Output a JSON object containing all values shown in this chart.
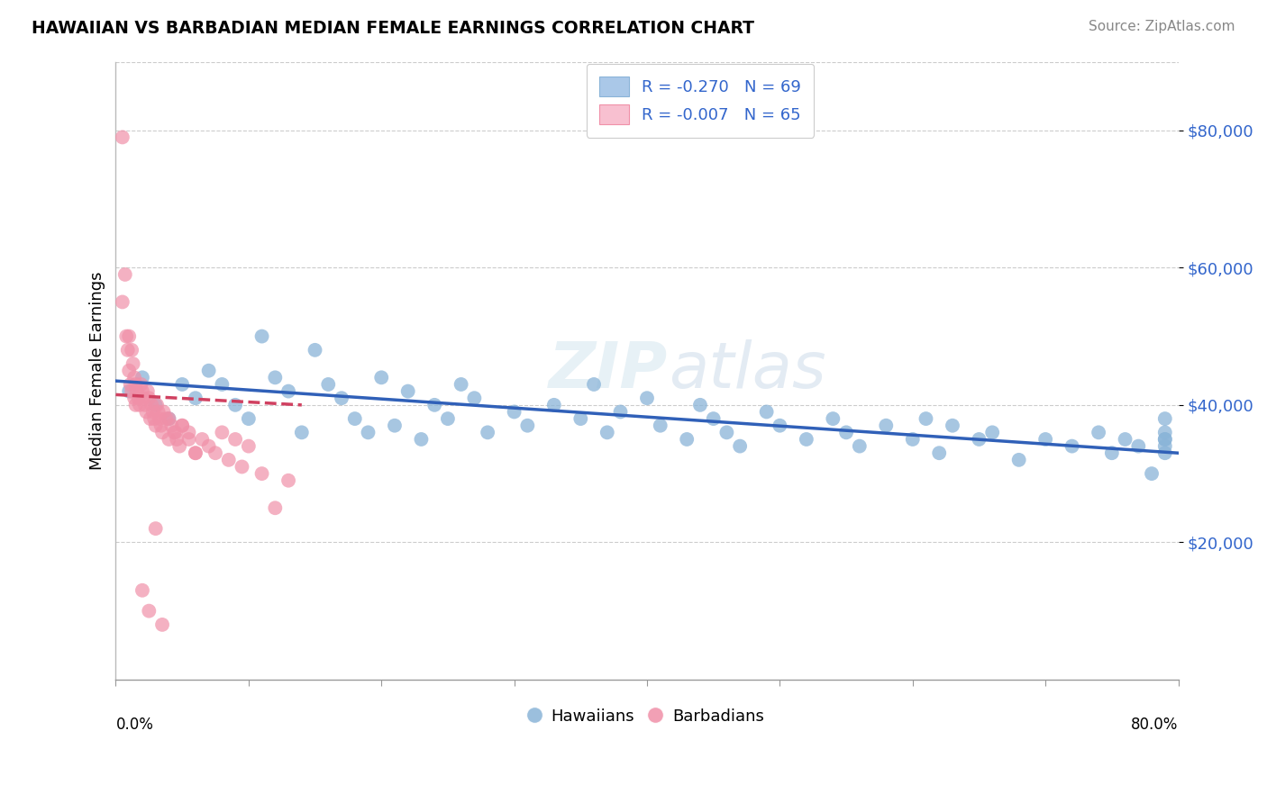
{
  "title": "HAWAIIAN VS BARBADIAN MEDIAN FEMALE EARNINGS CORRELATION CHART",
  "source": "Source: ZipAtlas.com",
  "ylabel": "Median Female Earnings",
  "watermark": "ZIPatlas",
  "dot_color_hawaiians": "#8ab4d8",
  "dot_color_barbadians": "#f090a8",
  "line_color_hawaiians": "#3060b8",
  "line_color_barbadians": "#d04060",
  "background_color": "#ffffff",
  "grid_color": "#cccccc",
  "xlim": [
    0,
    0.8
  ],
  "ylim": [
    0,
    90000
  ],
  "yticks": [
    20000,
    40000,
    60000,
    80000
  ],
  "ytick_labels": [
    "$20,000",
    "$40,000",
    "$60,000",
    "$80,000"
  ],
  "hawaiians_x": [
    0.01,
    0.02,
    0.03,
    0.04,
    0.05,
    0.06,
    0.07,
    0.08,
    0.09,
    0.1,
    0.11,
    0.12,
    0.13,
    0.14,
    0.15,
    0.16,
    0.17,
    0.18,
    0.19,
    0.2,
    0.21,
    0.22,
    0.23,
    0.24,
    0.25,
    0.26,
    0.27,
    0.28,
    0.3,
    0.31,
    0.33,
    0.35,
    0.36,
    0.37,
    0.38,
    0.4,
    0.41,
    0.43,
    0.44,
    0.45,
    0.46,
    0.47,
    0.49,
    0.5,
    0.52,
    0.54,
    0.55,
    0.56,
    0.58,
    0.6,
    0.61,
    0.62,
    0.63,
    0.65,
    0.66,
    0.68,
    0.7,
    0.72,
    0.74,
    0.75,
    0.76,
    0.77,
    0.78,
    0.79,
    0.79,
    0.79,
    0.79,
    0.79,
    0.79
  ],
  "hawaiians_y": [
    42000,
    44000,
    40000,
    38000,
    43000,
    41000,
    45000,
    43000,
    40000,
    38000,
    50000,
    44000,
    42000,
    36000,
    48000,
    43000,
    41000,
    38000,
    36000,
    44000,
    37000,
    42000,
    35000,
    40000,
    38000,
    43000,
    41000,
    36000,
    39000,
    37000,
    40000,
    38000,
    43000,
    36000,
    39000,
    41000,
    37000,
    35000,
    40000,
    38000,
    36000,
    34000,
    39000,
    37000,
    35000,
    38000,
    36000,
    34000,
    37000,
    35000,
    38000,
    33000,
    37000,
    35000,
    36000,
    32000,
    35000,
    34000,
    36000,
    33000,
    35000,
    34000,
    30000,
    38000,
    36000,
    35000,
    34000,
    33000,
    35000
  ],
  "barbadians_x": [
    0.005,
    0.005,
    0.007,
    0.008,
    0.009,
    0.01,
    0.01,
    0.011,
    0.012,
    0.012,
    0.013,
    0.014,
    0.014,
    0.015,
    0.015,
    0.016,
    0.017,
    0.018,
    0.019,
    0.02,
    0.021,
    0.022,
    0.023,
    0.024,
    0.025,
    0.026,
    0.027,
    0.028,
    0.029,
    0.03,
    0.031,
    0.032,
    0.033,
    0.034,
    0.035,
    0.036,
    0.038,
    0.04,
    0.042,
    0.044,
    0.046,
    0.048,
    0.05,
    0.055,
    0.06,
    0.065,
    0.07,
    0.075,
    0.08,
    0.085,
    0.09,
    0.095,
    0.1,
    0.11,
    0.12,
    0.13,
    0.02,
    0.025,
    0.03,
    0.035,
    0.04,
    0.045,
    0.05,
    0.055,
    0.06
  ],
  "barbadians_y": [
    79000,
    55000,
    59000,
    50000,
    48000,
    45000,
    50000,
    43000,
    48000,
    42000,
    46000,
    44000,
    41000,
    43000,
    40000,
    42000,
    41000,
    40000,
    43000,
    42000,
    41000,
    40000,
    39000,
    42000,
    41000,
    38000,
    40000,
    39000,
    38000,
    37000,
    40000,
    39000,
    38000,
    37000,
    36000,
    39000,
    38000,
    35000,
    37000,
    36000,
    35000,
    34000,
    37000,
    36000,
    33000,
    35000,
    34000,
    33000,
    36000,
    32000,
    35000,
    31000,
    34000,
    30000,
    25000,
    29000,
    13000,
    10000,
    22000,
    8000,
    38000,
    36000,
    37000,
    35000,
    33000
  ]
}
